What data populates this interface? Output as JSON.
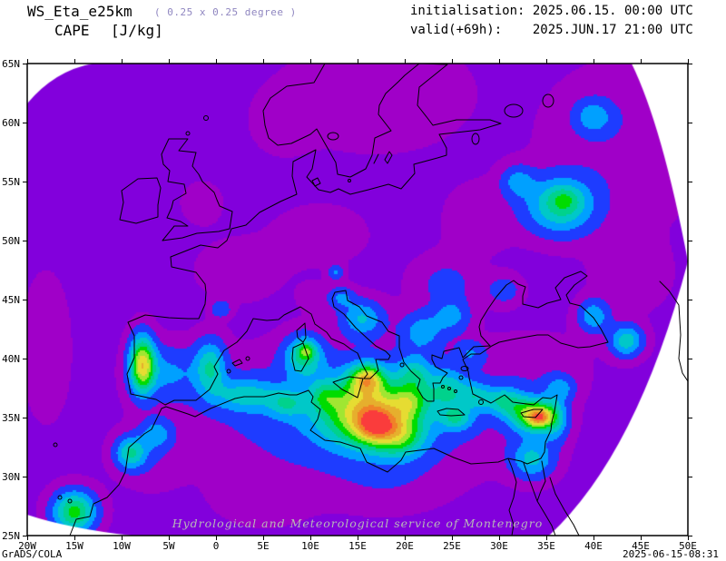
{
  "header": {
    "model_name": "WS_Eta_e25km",
    "resolution_note": "( 0.25 x 0.25 degree )",
    "parameter": "CAPE",
    "units": "[J/kg]",
    "init_line": "initialisation: 2025.06.15. 00:00 UTC",
    "valid_line": "valid(+69h):    2025.JUN.17 21:00 UTC"
  },
  "footer": {
    "left": "GrADS/COLA",
    "right": "2025-06-15-08:31"
  },
  "watermark": "Hydrological and Meteorological service of Montenegro",
  "axes": {
    "lat_labels": [
      "65N",
      "60N",
      "55N",
      "50N",
      "45N",
      "40N",
      "35N",
      "30N",
      "25N"
    ],
    "lon_labels": [
      "20W",
      "15W",
      "10W",
      "5W",
      "0",
      "5E",
      "10E",
      "15E",
      "20E",
      "25E",
      "30E",
      "35E",
      "40E",
      "45E",
      "50E"
    ]
  },
  "chart_data": {
    "type": "heatmap",
    "title": "CAPE [J/kg] WS_Eta_e25km",
    "variable": "CAPE",
    "units": "J/kg",
    "lon_range": [
      -20,
      50
    ],
    "lat_range": [
      25,
      65
    ],
    "grid_resolution_deg": 0.25,
    "levels": [
      100,
      250,
      500,
      750,
      1000,
      1250,
      1500,
      1750,
      2000,
      2250,
      2500
    ],
    "palette": [
      "#8200dc",
      "#a000c8",
      "#1e3cff",
      "#00a0ff",
      "#00c8c8",
      "#00d28c",
      "#00dc00",
      "#a0e632",
      "#e6dc32",
      "#e6af2d",
      "#f08228",
      "#fa3c3c"
    ],
    "background_value": 60,
    "blob_format": [
      "lon",
      "lat",
      "amplitude_Jkg",
      "radius_lon_deg",
      "radius_lat_deg"
    ],
    "blobs": [
      [
        2.5,
        47.5,
        130,
        4.5,
        2.5
      ],
      [
        11,
        50.5,
        120,
        5,
        2.5
      ],
      [
        -1.5,
        53.2,
        115,
        2.2,
        1.8
      ],
      [
        17,
        62.5,
        155,
        9,
        4.5
      ],
      [
        7,
        60,
        120,
        3,
        2.5
      ],
      [
        43,
        58,
        155,
        8,
        6.5
      ],
      [
        24,
        46.5,
        120,
        4,
        2.5
      ],
      [
        34,
        39.5,
        130,
        5,
        2.5
      ],
      [
        -7,
        31.5,
        140,
        3.5,
        2.5
      ],
      [
        5,
        28.5,
        140,
        5,
        2.5
      ],
      [
        18,
        29.5,
        130,
        6,
        2.5
      ],
      [
        -18,
        41,
        130,
        2.5,
        6
      ],
      [
        28,
        52,
        110,
        4,
        3
      ],
      [
        44,
        47,
        130,
        4,
        3
      ],
      [
        10.5,
        45.2,
        110,
        1.8,
        1.2
      ],
      [
        36.5,
        53,
        1000,
        3.5,
        2.3
      ],
      [
        37,
        53.5,
        320,
        1.5,
        1
      ],
      [
        32,
        55,
        500,
        1.7,
        1.3
      ],
      [
        40,
        60.5,
        550,
        2,
        1.4
      ],
      [
        12.7,
        47.3,
        450,
        0.8,
        0.6
      ],
      [
        0.5,
        44.2,
        400,
        1,
        0.7
      ],
      [
        15,
        35.5,
        480,
        14,
        4.5
      ],
      [
        16,
        35.5,
        1500,
        4.5,
        2.8
      ],
      [
        16.8,
        34.3,
        1000,
        2,
        1.4
      ],
      [
        16,
        38.3,
        1300,
        1.7,
        1.2
      ],
      [
        19.5,
        33.5,
        900,
        2.6,
        1.8
      ],
      [
        9.3,
        40.2,
        900,
        2,
        1.7
      ],
      [
        9.6,
        40.7,
        650,
        0.9,
        0.7
      ],
      [
        -7.8,
        39.5,
        1750,
        1.3,
        2.3
      ],
      [
        -5,
        38.8,
        450,
        3.2,
        2.2
      ],
      [
        -0.6,
        39.3,
        850,
        1.6,
        2.2
      ],
      [
        3,
        36.9,
        650,
        3.5,
        1.4
      ],
      [
        -9,
        32,
        900,
        1.6,
        1.3
      ],
      [
        -6.3,
        33.6,
        550,
        1.6,
        1.2
      ],
      [
        -15,
        27,
        1300,
        2.2,
        1.7
      ],
      [
        15.5,
        43.4,
        700,
        2.2,
        1.5
      ],
      [
        13.3,
        45.2,
        450,
        1.3,
        0.9
      ],
      [
        21,
        38.7,
        650,
        1.7,
        1.5
      ],
      [
        20.5,
        36.3,
        700,
        1.8,
        1.3
      ],
      [
        24.5,
        37.3,
        700,
        2.2,
        1.8
      ],
      [
        25.5,
        34.9,
        650,
        1.7,
        1
      ],
      [
        21.8,
        42.3,
        550,
        2.2,
        1.6
      ],
      [
        25,
        43.6,
        500,
        1.9,
        1.4
      ],
      [
        24.5,
        46.2,
        280,
        1.8,
        1.3
      ],
      [
        30.5,
        45.8,
        320,
        1.8,
        1.2
      ],
      [
        40,
        43.6,
        650,
        1.6,
        1.3
      ],
      [
        43.5,
        41.5,
        850,
        1.7,
        1.3
      ],
      [
        30.5,
        36.4,
        800,
        2,
        1.2
      ],
      [
        33.6,
        35.2,
        1550,
        2.3,
        1.4
      ],
      [
        34.3,
        35,
        1050,
        1.1,
        0.75
      ],
      [
        33.5,
        31.5,
        750,
        2.2,
        1.6
      ],
      [
        36,
        34.8,
        600,
        1.3,
        1.8
      ],
      [
        27.5,
        36.8,
        550,
        1.6,
        1.1
      ],
      [
        11.5,
        36.8,
        500,
        1.5,
        1.2
      ],
      [
        7.5,
        36.2,
        550,
        1.8,
        1.1
      ],
      [
        27,
        40.5,
        380,
        1.5,
        1
      ],
      [
        36.5,
        37.5,
        500,
        1.5,
        1
      ]
    ]
  }
}
